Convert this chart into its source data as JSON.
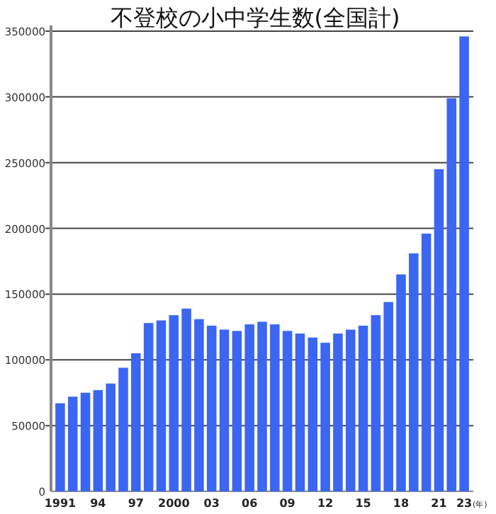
{
  "chart_data": {
    "type": "bar",
    "title": "不登校の小中学生数(全国計)",
    "xlabel": "(年)",
    "categories": [
      "1991",
      null,
      null,
      "94",
      null,
      null,
      "97",
      null,
      null,
      "2000",
      null,
      null,
      "03",
      null,
      null,
      "06",
      null,
      null,
      "09",
      null,
      null,
      "12",
      null,
      null,
      "15",
      null,
      null,
      "18",
      null,
      null,
      "21",
      null,
      "23"
    ],
    "values": [
      67000,
      72000,
      75000,
      77000,
      82000,
      94000,
      105000,
      128000,
      130000,
      134000,
      139000,
      131000,
      126000,
      123000,
      122000,
      127000,
      129000,
      127000,
      122000,
      120000,
      117000,
      113000,
      120000,
      123000,
      126000,
      134000,
      144000,
      165000,
      181000,
      196000,
      245000,
      299000,
      346000
    ],
    "color": "#3b66f2",
    "ylim": [
      0,
      350000
    ],
    "yticks": [
      0,
      50000,
      100000,
      150000,
      200000,
      250000,
      300000,
      350000
    ],
    "grid": "y"
  }
}
